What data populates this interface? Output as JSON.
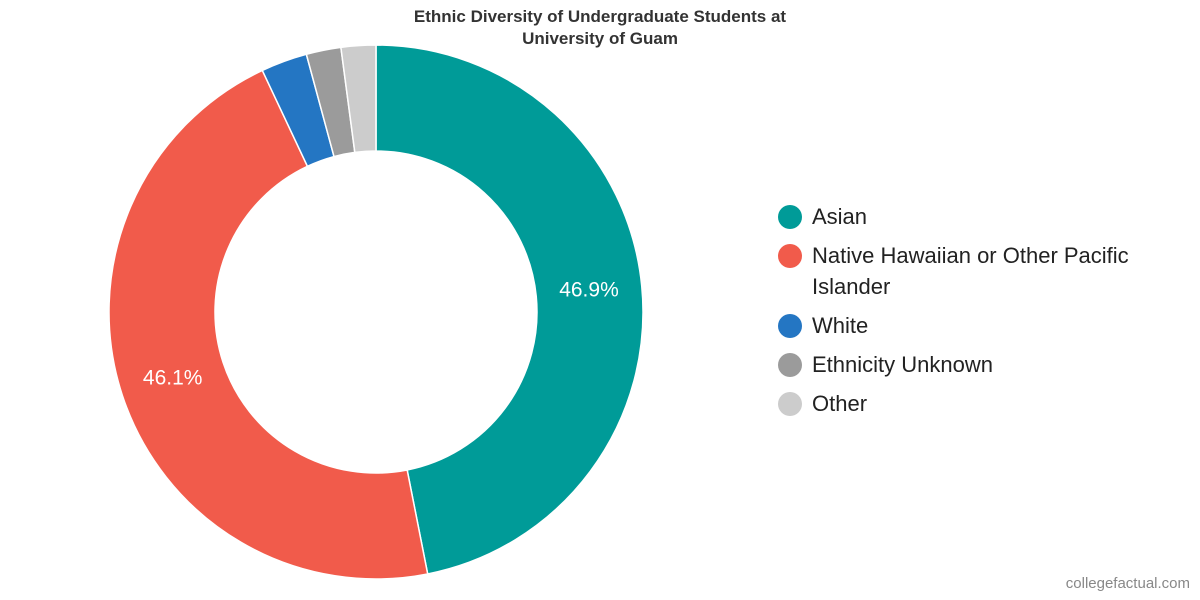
{
  "chart_data": {
    "type": "pie",
    "title_lines": [
      "Ethnic Diversity of Undergraduate Students at",
      "University of Guam"
    ],
    "categories": [
      "Asian",
      "Native Hawaiian or Other Pacific Islander",
      "White",
      "Ethnicity Unknown",
      "Other"
    ],
    "values": [
      46.9,
      46.1,
      2.8,
      2.1,
      2.1
    ],
    "colors": [
      "#009b98",
      "#f15b4b",
      "#2476c3",
      "#9b9b9b",
      "#cccccc"
    ],
    "data_labels": [
      "46.9%",
      "46.1%",
      "",
      "",
      ""
    ],
    "donut": true,
    "legend_position": "right"
  },
  "watermark": "collegefactual.com"
}
